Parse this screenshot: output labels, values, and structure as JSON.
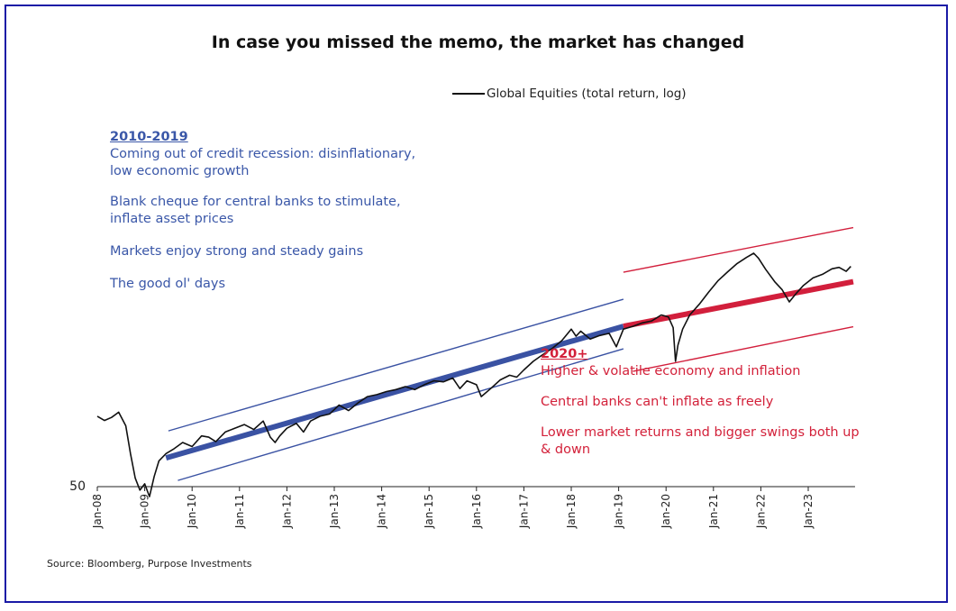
{
  "chart_data": {
    "type": "line",
    "title": "In case you missed the memo, the market has changed",
    "legend": "Global Equities (total return, log)",
    "legend_position": "top-right",
    "y_scale": "log",
    "y_tick_label": "50",
    "x_ticks": [
      "Jan-08",
      "Jan-09",
      "Jan-10",
      "Jan-11",
      "Jan-12",
      "Jan-13",
      "Jan-14",
      "Jan-15",
      "Jan-16",
      "Jan-17",
      "Jan-18",
      "Jan-19",
      "Jan-20",
      "Jan-21",
      "Jan-22",
      "Jan-23"
    ],
    "series": [
      {
        "name": "Global Equities (total return, log)",
        "x": [
          2008.0,
          2008.15,
          2008.3,
          2008.45,
          2008.6,
          2008.7,
          2008.8,
          2008.9,
          2009.0,
          2009.1,
          2009.2,
          2009.3,
          2009.45,
          2009.6,
          2009.8,
          2010.0,
          2010.2,
          2010.35,
          2010.5,
          2010.7,
          2010.9,
          2011.1,
          2011.3,
          2011.5,
          2011.65,
          2011.75,
          2011.85,
          2012.0,
          2012.2,
          2012.35,
          2012.5,
          2012.7,
          2012.9,
          2013.1,
          2013.3,
          2013.5,
          2013.7,
          2013.9,
          2014.1,
          2014.3,
          2014.5,
          2014.7,
          2014.9,
          2015.1,
          2015.3,
          2015.5,
          2015.65,
          2015.8,
          2016.0,
          2016.1,
          2016.3,
          2016.5,
          2016.7,
          2016.85,
          2017.0,
          2017.2,
          2017.4,
          2017.6,
          2017.8,
          2018.0,
          2018.1,
          2018.2,
          2018.4,
          2018.6,
          2018.8,
          2018.95,
          2019.1,
          2019.3,
          2019.5,
          2019.7,
          2019.9,
          2020.05,
          2020.15,
          2020.2,
          2020.25,
          2020.35,
          2020.5,
          2020.7,
          2020.9,
          2021.1,
          2021.3,
          2021.5,
          2021.7,
          2021.85,
          2021.95,
          2022.1,
          2022.3,
          2022.45,
          2022.6,
          2022.75,
          2022.9,
          2023.1,
          2023.3,
          2023.5,
          2023.65,
          2023.8,
          2023.9
        ],
        "y": [
          75.0,
          73.2,
          74.5,
          76.8,
          71.0,
          60.5,
          52.5,
          49.0,
          50.8,
          47.2,
          53.0,
          58.0,
          60.5,
          62.0,
          64.5,
          63.0,
          67.0,
          66.5,
          64.8,
          68.5,
          70.0,
          71.5,
          69.5,
          73.0,
          66.5,
          64.5,
          67.0,
          70.0,
          72.0,
          68.5,
          73.0,
          75.0,
          76.0,
          80.0,
          77.5,
          81.0,
          84.0,
          85.0,
          86.5,
          87.5,
          89.0,
          87.5,
          90.0,
          92.0,
          91.5,
          93.5,
          88.0,
          92.0,
          90.0,
          84.0,
          88.0,
          92.5,
          95.0,
          94.0,
          98.0,
          103.0,
          107.0,
          111.0,
          116.0,
          124.0,
          119.0,
          122.5,
          117.0,
          119.5,
          121.0,
          112.0,
          124.0,
          126.0,
          128.5,
          130.0,
          134.5,
          133.0,
          125.0,
          103.0,
          113.0,
          124.0,
          134.5,
          143.0,
          153.5,
          164.0,
          172.5,
          181.0,
          187.5,
          192.0,
          186.5,
          175.0,
          162.5,
          155.5,
          145.0,
          152.5,
          159.5,
          166.5,
          170.0,
          175.5,
          177.0,
          173.0,
          178.0
        ]
      }
    ],
    "trend_2010_2019": {
      "start": [
        2009.45,
        59.0
      ],
      "end": [
        2019.1,
        126.0
      ]
    },
    "trend_2020": {
      "start": [
        2019.1,
        126.0
      ],
      "end": [
        2023.95,
        163.0
      ]
    }
  },
  "annotations": {
    "left": {
      "heading": "2010-2019",
      "line1": "Coming out of credit recession: disinflationary,",
      "line2": "low economic growth",
      "line3": "Blank cheque for central banks to stimulate,",
      "line4": "inflate asset prices",
      "line5": "Markets enjoy strong and steady gains",
      "line6": "The good ol' days"
    },
    "right": {
      "heading": "2020+",
      "line1": "Higher & volatile economy and inflation",
      "line2": "Central banks can't inflate as freely",
      "line3": "Lower market returns and bigger swings both up",
      "line4": "& down"
    }
  },
  "source": "Source: Bloomberg, Purpose Investments",
  "colors": {
    "series": "#111111",
    "blue_trend": "#3a52a3",
    "red_trend": "#d21f3c",
    "frame": "#1a1aa6"
  }
}
